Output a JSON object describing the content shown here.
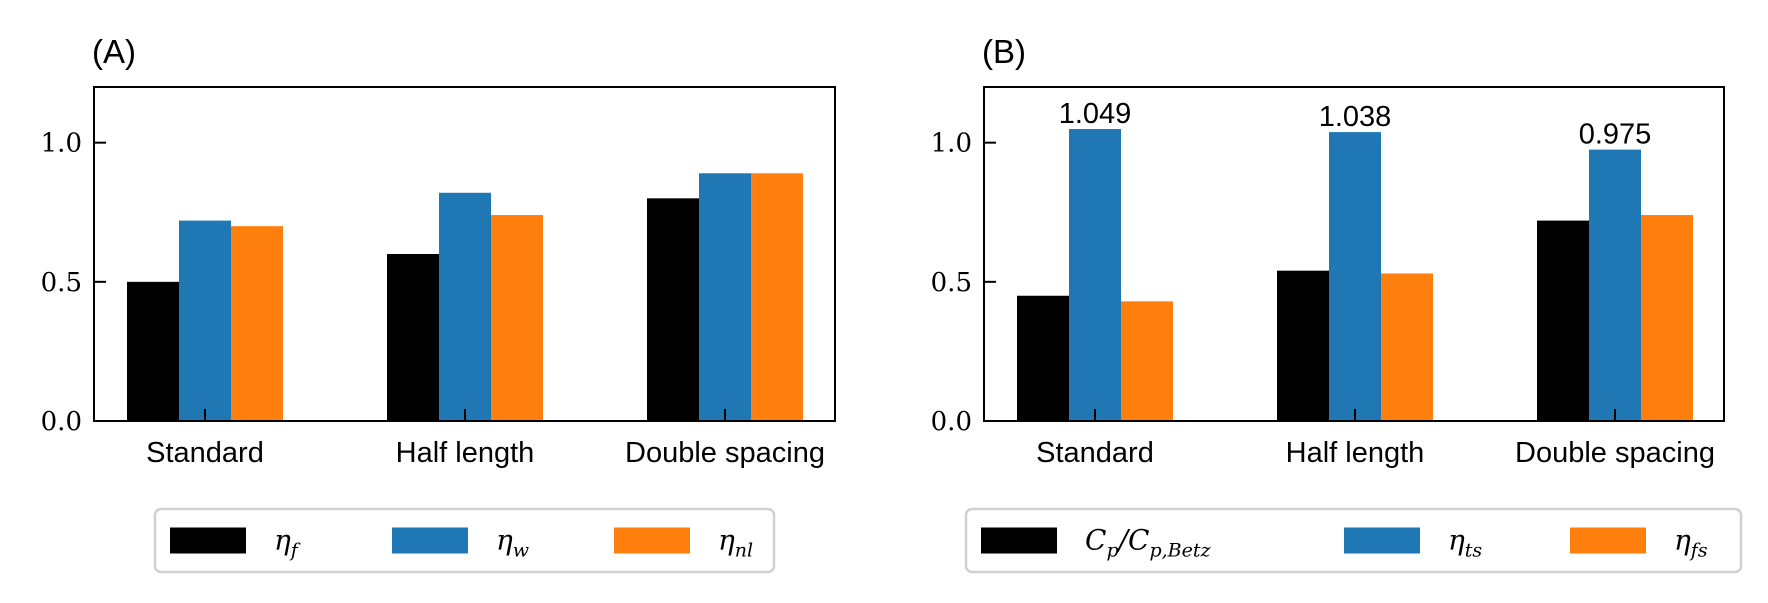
{
  "chart_data": [
    {
      "type": "bar",
      "panel_label": "(A)",
      "categories": [
        "Standard",
        "Half length",
        "Double spacing"
      ],
      "ylim": [
        0,
        1.2
      ],
      "yticks": [
        "0.0",
        "0.5",
        "1.0"
      ],
      "grid": false,
      "legend_position": "bottom",
      "series": [
        {
          "name": "η",
          "sub": "f",
          "color": "#000000",
          "values": [
            0.5,
            0.6,
            0.8
          ]
        },
        {
          "name": "η",
          "sub": "w",
          "color": "#1f77b4",
          "values": [
            0.72,
            0.82,
            0.89
          ]
        },
        {
          "name": "η",
          "sub": "nl",
          "color": "#ff7f0e",
          "values": [
            0.7,
            0.74,
            0.89
          ]
        }
      ],
      "annotations": []
    },
    {
      "type": "bar",
      "panel_label": "(B)",
      "categories": [
        "Standard",
        "Half length",
        "Double spacing"
      ],
      "ylim": [
        0,
        1.2
      ],
      "yticks": [
        "0.0",
        "0.5",
        "1.0"
      ],
      "grid": false,
      "legend_position": "bottom",
      "series": [
        {
          "name": "C",
          "sub": "p",
          "name2": "/C",
          "sub2": "p,Betz",
          "color": "#000000",
          "values": [
            0.45,
            0.54,
            0.72
          ]
        },
        {
          "name": "η",
          "sub": "ts",
          "color": "#1f77b4",
          "values": [
            1.049,
            1.038,
            0.975
          ]
        },
        {
          "name": "η",
          "sub": "fs",
          "color": "#ff7f0e",
          "values": [
            0.43,
            0.53,
            0.74
          ]
        }
      ],
      "annotations": [
        "1.049",
        "1.038",
        "0.975"
      ]
    }
  ]
}
